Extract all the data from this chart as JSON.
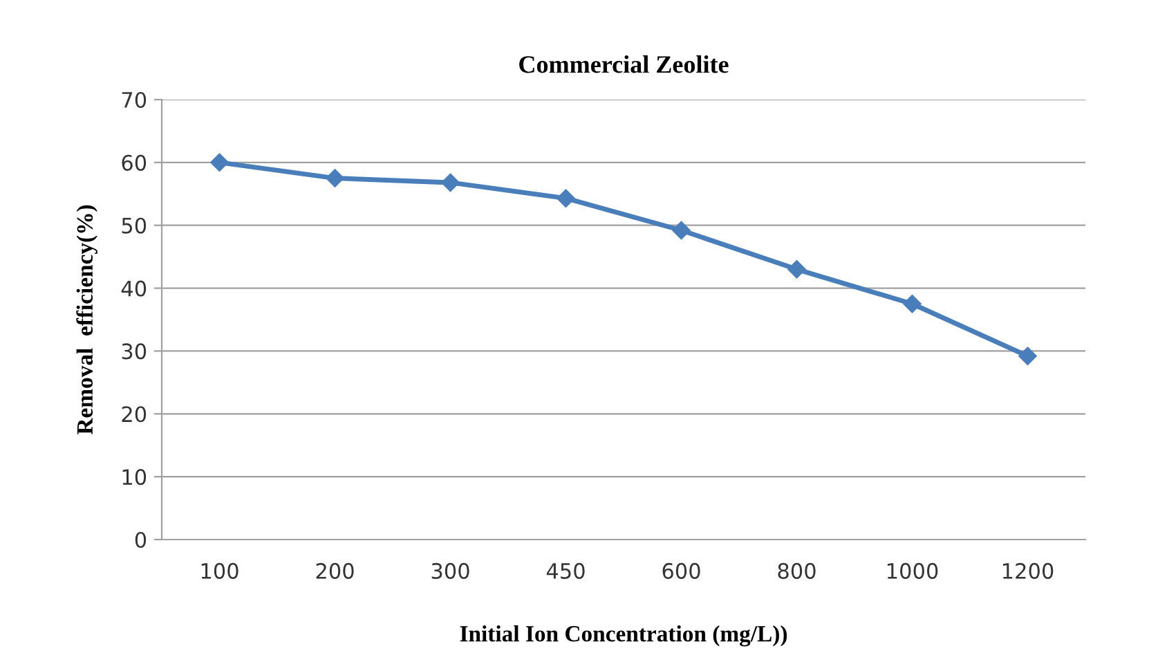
{
  "chart_data": {
    "type": "line",
    "title": "Commercial Zeolite",
    "xlabel": "Initial Ion Concentration (mg/L))",
    "ylabel": "Removal  efficiency(%)",
    "categories": [
      "100",
      "200",
      "300",
      "450",
      "600",
      "800",
      "1000",
      "1200"
    ],
    "series": [
      {
        "color": "#4a7ebb",
        "values": [
          60,
          57.5,
          56.8,
          54.3,
          49.2,
          43,
          37.5,
          29.2
        ]
      }
    ],
    "ylim": [
      0,
      70
    ],
    "yticks": [
      0,
      10,
      20,
      30,
      40,
      50,
      60,
      70
    ],
    "grid": "y",
    "legend": false,
    "marker": "diamond",
    "line_style": "solid"
  }
}
